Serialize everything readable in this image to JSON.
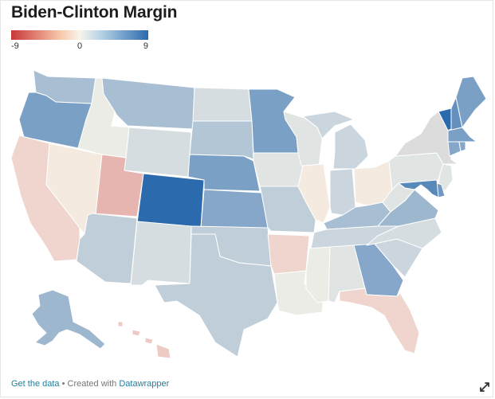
{
  "title": "Biden-Clinton Margin",
  "legend": {
    "min": "-9",
    "mid": "0",
    "max": "9"
  },
  "footer": {
    "get_data": "Get the data",
    "separator": " • Created with ",
    "created_with": "Datawrapper"
  },
  "icons": {
    "fullscreen": "expand-arrows-icon"
  },
  "colors": {
    "dem_strong": "#2c6aae",
    "neutral": "#f7f4ea",
    "rep_strong": "#c8373a",
    "no_data": "#dcdcdc",
    "border": "#ffffff"
  },
  "chart_data": {
    "type": "choropleth",
    "scale": {
      "min": -9,
      "mid": 0,
      "max": 9
    },
    "states": [
      {
        "id": "WA",
        "value": 3.5
      },
      {
        "id": "OR",
        "value": 5.5
      },
      {
        "id": "CA",
        "value": -1.5
      },
      {
        "id": "NV",
        "value": -0.5
      },
      {
        "id": "ID",
        "value": 0.5
      },
      {
        "id": "MT",
        "value": 3.5
      },
      {
        "id": "WY",
        "value": 1.5
      },
      {
        "id": "UT",
        "value": -3.0
      },
      {
        "id": "CO",
        "value": 9.0
      },
      {
        "id": "AZ",
        "value": 2.5
      },
      {
        "id": "NM",
        "value": 1.5
      },
      {
        "id": "ND",
        "value": 1.5
      },
      {
        "id": "SD",
        "value": 3.0
      },
      {
        "id": "NE",
        "value": 5.5
      },
      {
        "id": "KS",
        "value": 5.0
      },
      {
        "id": "OK",
        "value": 2.5
      },
      {
        "id": "TX",
        "value": 2.5
      },
      {
        "id": "MN",
        "value": 5.5
      },
      {
        "id": "IA",
        "value": 1.0
      },
      {
        "id": "MO",
        "value": 2.5
      },
      {
        "id": "AR",
        "value": -1.5
      },
      {
        "id": "LA",
        "value": 0.5
      },
      {
        "id": "WI",
        "value": 1.0
      },
      {
        "id": "IL",
        "value": -0.5
      },
      {
        "id": "MI",
        "value": 2.0
      },
      {
        "id": "IN",
        "value": 2.0
      },
      {
        "id": "OH",
        "value": -0.5
      },
      {
        "id": "KY",
        "value": 3.5
      },
      {
        "id": "TN",
        "value": 2.0
      },
      {
        "id": "MS",
        "value": 0.5
      },
      {
        "id": "AL",
        "value": 1.0
      },
      {
        "id": "GA",
        "value": 5.0
      },
      {
        "id": "FL",
        "value": -1.5
      },
      {
        "id": "SC",
        "value": 2.0
      },
      {
        "id": "NC",
        "value": 1.5
      },
      {
        "id": "VA",
        "value": 4.0
      },
      {
        "id": "WV",
        "value": 1.0
      },
      {
        "id": "PA",
        "value": 1.0
      },
      {
        "id": "NY",
        "value": null
      },
      {
        "id": "VT",
        "value": 9.0
      },
      {
        "id": "NH",
        "value": 6.5
      },
      {
        "id": "ME",
        "value": 5.5
      },
      {
        "id": "MA",
        "value": 5.5
      },
      {
        "id": "CT",
        "value": 5.0
      },
      {
        "id": "RI",
        "value": 5.0
      },
      {
        "id": "NJ",
        "value": 1.0
      },
      {
        "id": "DE",
        "value": 6.0
      },
      {
        "id": "MD",
        "value": 7.0
      },
      {
        "id": "AK",
        "value": 4.0
      },
      {
        "id": "HI",
        "value": -2.0
      }
    ]
  }
}
